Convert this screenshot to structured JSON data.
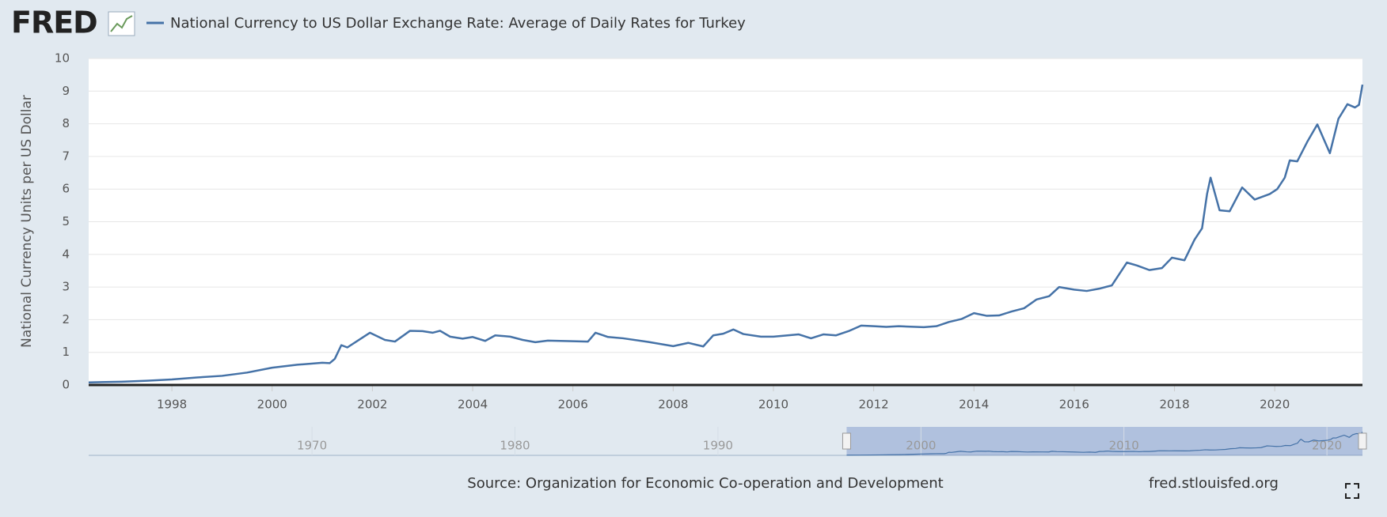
{
  "logo": "FRED",
  "chart_data": {
    "type": "line",
    "y_label": "National Currency Units per US Dollar",
    "x": [
      1996.34,
      1997.0,
      1997.5,
      1998.0,
      1998.5,
      1999.0,
      1999.5,
      2000.0,
      2000.5,
      2001.0,
      2001.15,
      2001.25,
      2001.38,
      2001.5,
      2001.75,
      2001.95,
      2002.25,
      2002.45,
      2002.75,
      2003.0,
      2003.2,
      2003.35,
      2003.55,
      2003.8,
      2004.0,
      2004.25,
      2004.45,
      2004.75,
      2005.0,
      2005.25,
      2005.5,
      2006.0,
      2006.3,
      2006.45,
      2006.7,
      2007.0,
      2007.5,
      2008.0,
      2008.3,
      2008.6,
      2008.8,
      2009.0,
      2009.2,
      2009.4,
      2009.75,
      2010.0,
      2010.5,
      2010.75,
      2011.0,
      2011.25,
      2011.5,
      2011.75,
      2012.0,
      2012.25,
      2012.5,
      2013.0,
      2013.25,
      2013.5,
      2013.75,
      2014.0,
      2014.25,
      2014.5,
      2014.75,
      2015.0,
      2015.25,
      2015.5,
      2015.7,
      2016.0,
      2016.25,
      2016.5,
      2016.75,
      2017.05,
      2017.25,
      2017.5,
      2017.75,
      2017.95,
      2018.2,
      2018.4,
      2018.55,
      2018.65,
      2018.72,
      2018.9,
      2019.1,
      2019.35,
      2019.6,
      2019.9,
      2020.05,
      2020.2,
      2020.3,
      2020.45,
      2020.65,
      2020.85,
      2021.1,
      2021.27,
      2021.45,
      2021.6,
      2021.68,
      2021.75
    ],
    "series": [
      {
        "name": "National Currency to US Dollar Exchange Rate: Average of Daily Rates for Turkey",
        "color": "#4572a7",
        "values": [
          0.08,
          0.1,
          0.13,
          0.17,
          0.23,
          0.28,
          0.38,
          0.53,
          0.62,
          0.68,
          0.67,
          0.8,
          1.22,
          1.15,
          1.4,
          1.6,
          1.38,
          1.33,
          1.66,
          1.65,
          1.6,
          1.66,
          1.48,
          1.42,
          1.47,
          1.35,
          1.52,
          1.48,
          1.38,
          1.31,
          1.36,
          1.34,
          1.33,
          1.6,
          1.47,
          1.43,
          1.32,
          1.19,
          1.29,
          1.18,
          1.52,
          1.57,
          1.7,
          1.56,
          1.48,
          1.48,
          1.55,
          1.43,
          1.55,
          1.52,
          1.65,
          1.82,
          1.8,
          1.78,
          1.8,
          1.77,
          1.8,
          1.93,
          2.02,
          2.2,
          2.12,
          2.13,
          2.25,
          2.35,
          2.62,
          2.72,
          3.0,
          2.92,
          2.88,
          2.95,
          3.05,
          3.75,
          3.66,
          3.52,
          3.58,
          3.9,
          3.82,
          4.45,
          4.8,
          5.85,
          6.35,
          5.35,
          5.32,
          6.05,
          5.68,
          5.85,
          6.0,
          6.35,
          6.88,
          6.85,
          7.45,
          7.98,
          7.1,
          8.15,
          8.6,
          8.5,
          8.58,
          9.2
        ]
      }
    ],
    "xlim": [
      1996.34,
      2021.75
    ],
    "xticks": [
      1998,
      2000,
      2002,
      2004,
      2006,
      2008,
      2010,
      2012,
      2014,
      2016,
      2018,
      2020
    ],
    "ylim": [
      0,
      10
    ],
    "yticks": [
      0,
      1,
      2,
      3,
      4,
      5,
      6,
      7,
      8,
      9,
      10
    ],
    "grid": true,
    "navigator": {
      "xlim": [
        1959.0,
        2021.75
      ],
      "xticks": [
        1970,
        1980,
        1990,
        2000,
        2010,
        2020
      ]
    }
  },
  "source": "Source: Organization for Economic Co-operation and Development",
  "url": "fred.stlouisfed.org"
}
